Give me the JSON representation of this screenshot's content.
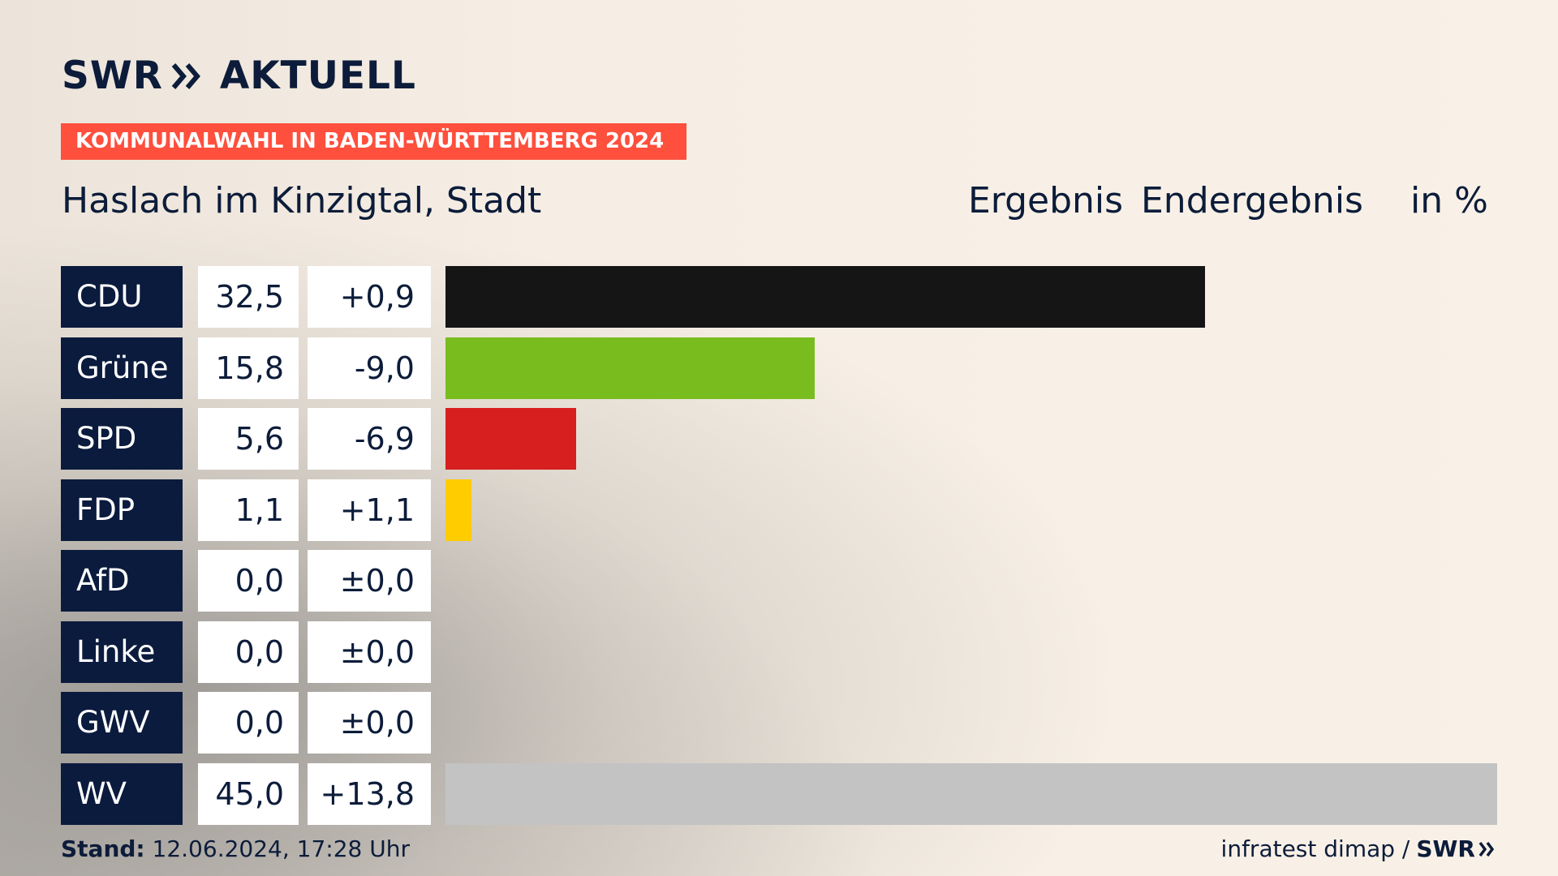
{
  "brand": {
    "logo_left": "SWR",
    "logo_right": "AKTUELL",
    "small_logo": "SWR"
  },
  "banner": {
    "text": "KOMMUNALWAHL IN BADEN-WÜRTTEMBERG 2024",
    "color": "#ff4f3d"
  },
  "header": {
    "place": "Haslach im Kinzigtal, Stadt",
    "result_label": "Ergebnis",
    "status_label": "Endergebnis",
    "unit_label": "in %"
  },
  "footer": {
    "stand_label": "Stand:",
    "stand_value": "12.06.2024, 17:28 Uhr",
    "source": "infratest dimap /"
  },
  "chart_data": {
    "type": "bar",
    "orientation": "horizontal",
    "categories": [
      "CDU",
      "Grüne",
      "SPD",
      "FDP",
      "AfD",
      "Linke",
      "GWV",
      "WV"
    ],
    "values": [
      32.5,
      15.8,
      5.6,
      1.1,
      0.0,
      0.0,
      0.0,
      45.0
    ],
    "value_labels": [
      "32,5",
      "15,8",
      "5,6",
      "1,1",
      "0,0",
      "0,0",
      "0,0",
      "45,0"
    ],
    "diff_labels": [
      "+0,9",
      "-9,0",
      "-6,9",
      "+1,1",
      "±0,0",
      "±0,0",
      "±0,0",
      "+13,8"
    ],
    "diffs": [
      0.9,
      -9.0,
      -6.9,
      1.1,
      0.0,
      0.0,
      0.0,
      13.8
    ],
    "colors": [
      "#151515",
      "#78bc1e",
      "#d71f1f",
      "#ffcc00",
      "#009ee0",
      "#be3075",
      "#999999",
      "#c3c3c3"
    ],
    "xlim": [
      0,
      45
    ],
    "title": "",
    "xlabel": "",
    "ylabel": "",
    "grid": false,
    "legend": "none"
  }
}
